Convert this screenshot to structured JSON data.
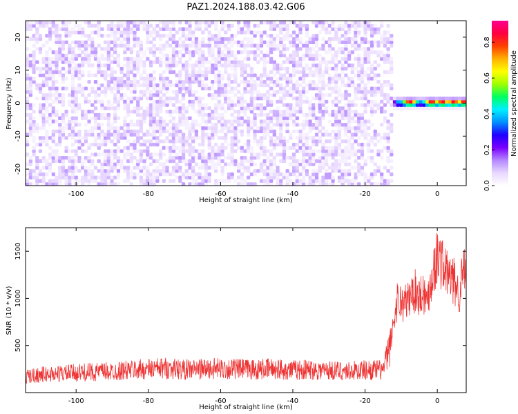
{
  "title": "PAZ1.2024.188.03.42.G06",
  "chart_data": [
    {
      "type": "heatmap",
      "xlabel": "Height of straight line (km)",
      "ylabel": "Frequency (Hz)",
      "xlim": [
        -114,
        8
      ],
      "ylim": [
        -25,
        25
      ],
      "x_ticks": [
        -100,
        -80,
        -60,
        -40,
        -20,
        0
      ],
      "y_ticks": [
        -20,
        -10,
        0,
        10,
        20
      ],
      "grid": false,
      "colorbar": {
        "label": "Normalized spectral amplitude",
        "range": [
          0,
          0.92
        ],
        "ticks": [
          0.0,
          0.2,
          0.4,
          0.6,
          0.8
        ],
        "colormap": [
          "#ffffff",
          "#e8d8ff",
          "#b488ff",
          "#7a00ff",
          "#1e00ff",
          "#0090ff",
          "#00f0ff",
          "#00ff60",
          "#a0ff00",
          "#ffff00",
          "#ffb000",
          "#ff4000",
          "#ff0040",
          "#ff0090"
        ]
      },
      "regions": [
        {
          "x_from": -114,
          "x_to": -13,
          "description": "broadband noise",
          "amplitude_min": 0.0,
          "amplitude_max": 0.12
        },
        {
          "x_from": -13,
          "x_to": 8,
          "description": "signal near 0 Hz",
          "center_freq": 0,
          "amplitude_max": 0.92
        }
      ],
      "hotspots": [
        -8,
        -2,
        1,
        4,
        7
      ]
    },
    {
      "type": "line",
      "xlabel": "Height of straight line (km)",
      "ylabel": "SNR (10 * v/v)",
      "xlim": [
        -114,
        8
      ],
      "ylim": [
        0,
        1750
      ],
      "x_ticks": [
        -100,
        -80,
        -60,
        -40,
        -20,
        0
      ],
      "y_ticks": [
        500,
        1000,
        1500
      ],
      "grid": false,
      "series": [
        {
          "color": "#ee3333",
          "x": [
            -114,
            -110,
            -105,
            -100,
            -95,
            -90,
            -85,
            -80,
            -75,
            -70,
            -65,
            -60,
            -55,
            -50,
            -45,
            -40,
            -35,
            -30,
            -25,
            -20,
            -15,
            -13,
            -12,
            -11,
            -10,
            -9,
            -8,
            -7,
            -6,
            -5,
            -4,
            -3,
            -2,
            -1,
            0,
            1,
            2,
            3,
            4,
            5,
            6,
            7,
            8
          ],
          "y": [
            170,
            190,
            200,
            210,
            220,
            225,
            240,
            250,
            260,
            245,
            250,
            255,
            250,
            245,
            255,
            240,
            245,
            235,
            230,
            240,
            240,
            500,
            780,
            1000,
            950,
            950,
            980,
            1050,
            1080,
            1020,
            1100,
            950,
            1150,
            1300,
            1450,
            1400,
            1300,
            1250,
            1200,
            1150,
            1050,
            1250,
            1300
          ]
        }
      ]
    }
  ]
}
